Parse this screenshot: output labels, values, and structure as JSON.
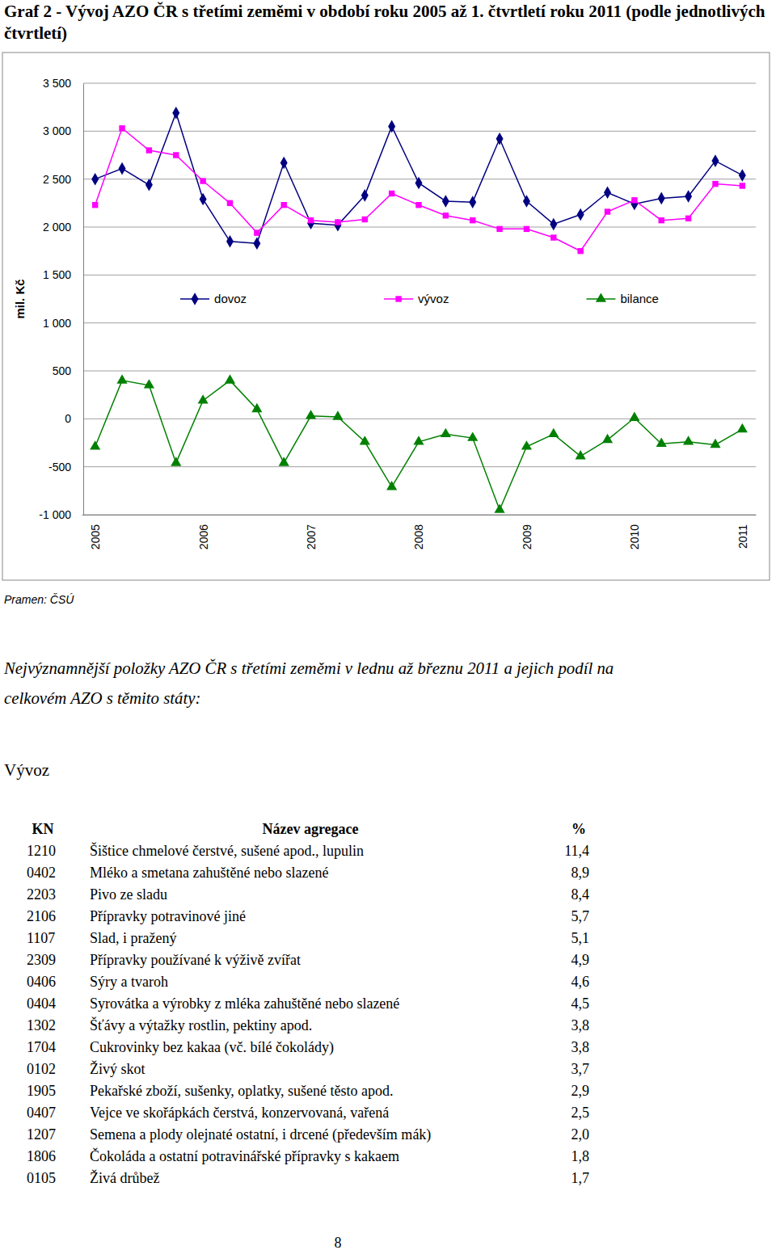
{
  "chart_data": {
    "type": "line",
    "title": "Graf 2 - Vývoj AZO ČR s třetími zeměmi v období roku 2005 až 1. čtvrtletí roku 2011 (podle jednotlivých čtvrtletí)",
    "y_label": "mil. Kč",
    "categories": [
      "2005",
      null,
      null,
      null,
      "2006",
      null,
      null,
      null,
      "2007",
      null,
      null,
      null,
      "2008",
      null,
      null,
      null,
      "2009",
      null,
      null,
      null,
      "2010",
      null,
      null,
      null,
      "2011"
    ],
    "series": [
      {
        "name": "dovoz",
        "color": "#000080",
        "marker": "diamond",
        "values": [
          2500,
          2610,
          2440,
          3190,
          2290,
          1850,
          1830,
          2670,
          2040,
          2020,
          2330,
          3050,
          2460,
          2270,
          2260,
          2920,
          2270,
          2030,
          2130,
          2360,
          2240,
          2300,
          2320,
          2690,
          2540
        ]
      },
      {
        "name": "vývoz",
        "color": "#ff00ff",
        "marker": "square",
        "values": [
          2230,
          3030,
          2800,
          2750,
          2480,
          2250,
          1940,
          2230,
          2070,
          2050,
          2080,
          2350,
          2230,
          2120,
          2070,
          1980,
          1980,
          1890,
          1750,
          2160,
          2280,
          2070,
          2090,
          2450,
          2430
        ]
      },
      {
        "name": "bilance",
        "color": "#008000",
        "marker": "triangle",
        "values": [
          -290,
          400,
          350,
          -460,
          190,
          400,
          100,
          -460,
          30,
          20,
          -240,
          -710,
          -240,
          -160,
          -200,
          -950,
          -290,
          -160,
          -390,
          -220,
          10,
          -260,
          -240,
          -270,
          -110
        ]
      }
    ],
    "ylim": [
      -1000,
      3500
    ],
    "yticks": [
      {
        "value": -1000,
        "label": "-1 000"
      },
      -500,
      0,
      500,
      {
        "value": 1000,
        "label": "1 000"
      },
      {
        "value": 1500,
        "label": "1 500"
      },
      {
        "value": 2000,
        "label": "2 000"
      },
      {
        "value": 2500,
        "label": "2 500"
      },
      {
        "value": 3000,
        "label": "3 000"
      },
      {
        "value": 3500,
        "label": "3 500"
      }
    ],
    "grid": true,
    "legend": "center"
  },
  "document": {
    "source": "Pramen: ČSÚ",
    "heading": [
      "Nejvýznamnější položky AZO ČR s třetími zeměmi v lednu až březnu 2011 a jejich podíl na",
      "celkovém AZO s těmito státy:"
    ],
    "section": "Vývoz",
    "table": {
      "header": [
        "KN",
        "Název agregace",
        "%"
      ],
      "rows": [
        [
          "1210",
          "Šištice chmelové čerstvé, sušené apod., lupulin",
          "11,4"
        ],
        [
          "0402",
          "Mléko a smetana zahuštěné nebo slazené",
          "8,9"
        ],
        [
          "2203",
          "Pivo ze sladu",
          "8,4"
        ],
        [
          "2106",
          "Přípravky potravinové jiné",
          "5,7"
        ],
        [
          "1107",
          "Slad, i pražený",
          "5,1"
        ],
        [
          "2309",
          "Přípravky používané k výživě zvířat",
          "4,9"
        ],
        [
          "0406",
          "Sýry a tvaroh",
          "4,6"
        ],
        [
          "0404",
          "Syrovátka a výrobky z mléka zahuštěné nebo slazené",
          "4,5"
        ],
        [
          "1302",
          "Šťávy a výtažky rostlin, pektiny apod.",
          "3,8"
        ],
        [
          "1704",
          "Cukrovinky bez kakaa (vč. bílé čokolády)",
          "3,8"
        ],
        [
          "0102",
          "Živý skot",
          "3,7"
        ],
        [
          "1905",
          "Pekařské zboží, sušenky, oplatky, sušené těsto apod.",
          "2,9"
        ],
        [
          "0407",
          "Vejce ve skořápkách čerstvá, konzervovaná, vařená",
          "2,5"
        ],
        [
          "1207",
          "Semena a plody olejnaté ostatní, i drcené (především mák)",
          "2,0"
        ],
        [
          "1806",
          "Čokoláda a ostatní potravinářské přípravky s kakaem",
          "1,8"
        ],
        [
          "0105",
          "Živá drůbež",
          "1,7"
        ]
      ]
    },
    "page_number": "8"
  }
}
